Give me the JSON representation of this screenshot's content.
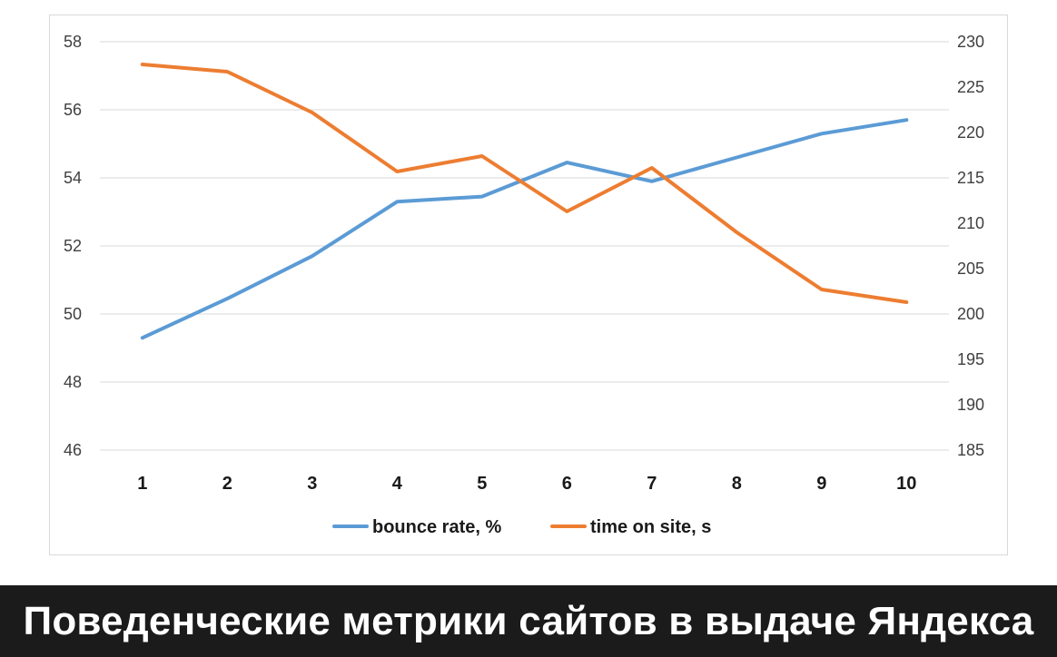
{
  "chart_data": {
    "type": "line",
    "categories": [
      "1",
      "2",
      "3",
      "4",
      "5",
      "6",
      "7",
      "8",
      "9",
      "10"
    ],
    "series": [
      {
        "name": "bounce rate, %",
        "axis": "left",
        "color": "#5b9bd5",
        "values": [
          49.3,
          50.45,
          51.7,
          53.3,
          53.45,
          54.45,
          53.9,
          54.6,
          55.3,
          55.7
        ]
      },
      {
        "name": "time on site, s",
        "axis": "right",
        "color": "#ed7d31",
        "values": [
          227.5,
          226.7,
          222.2,
          215.7,
          217.4,
          211.3,
          216.1,
          209.0,
          202.7,
          201.3
        ]
      }
    ],
    "y_left": {
      "ylim": [
        46,
        58
      ],
      "ticks": [
        "46",
        "48",
        "50",
        "52",
        "54",
        "56",
        "58"
      ]
    },
    "y_right": {
      "ylim": [
        185,
        230
      ],
      "ticks": [
        "185",
        "190",
        "195",
        "200",
        "205",
        "210",
        "215",
        "220",
        "225",
        "230"
      ]
    },
    "grid": true,
    "legend_position": "bottom"
  },
  "caption": {
    "text": "Поведенческие метрики сайтов в выдаче Яндекса"
  }
}
